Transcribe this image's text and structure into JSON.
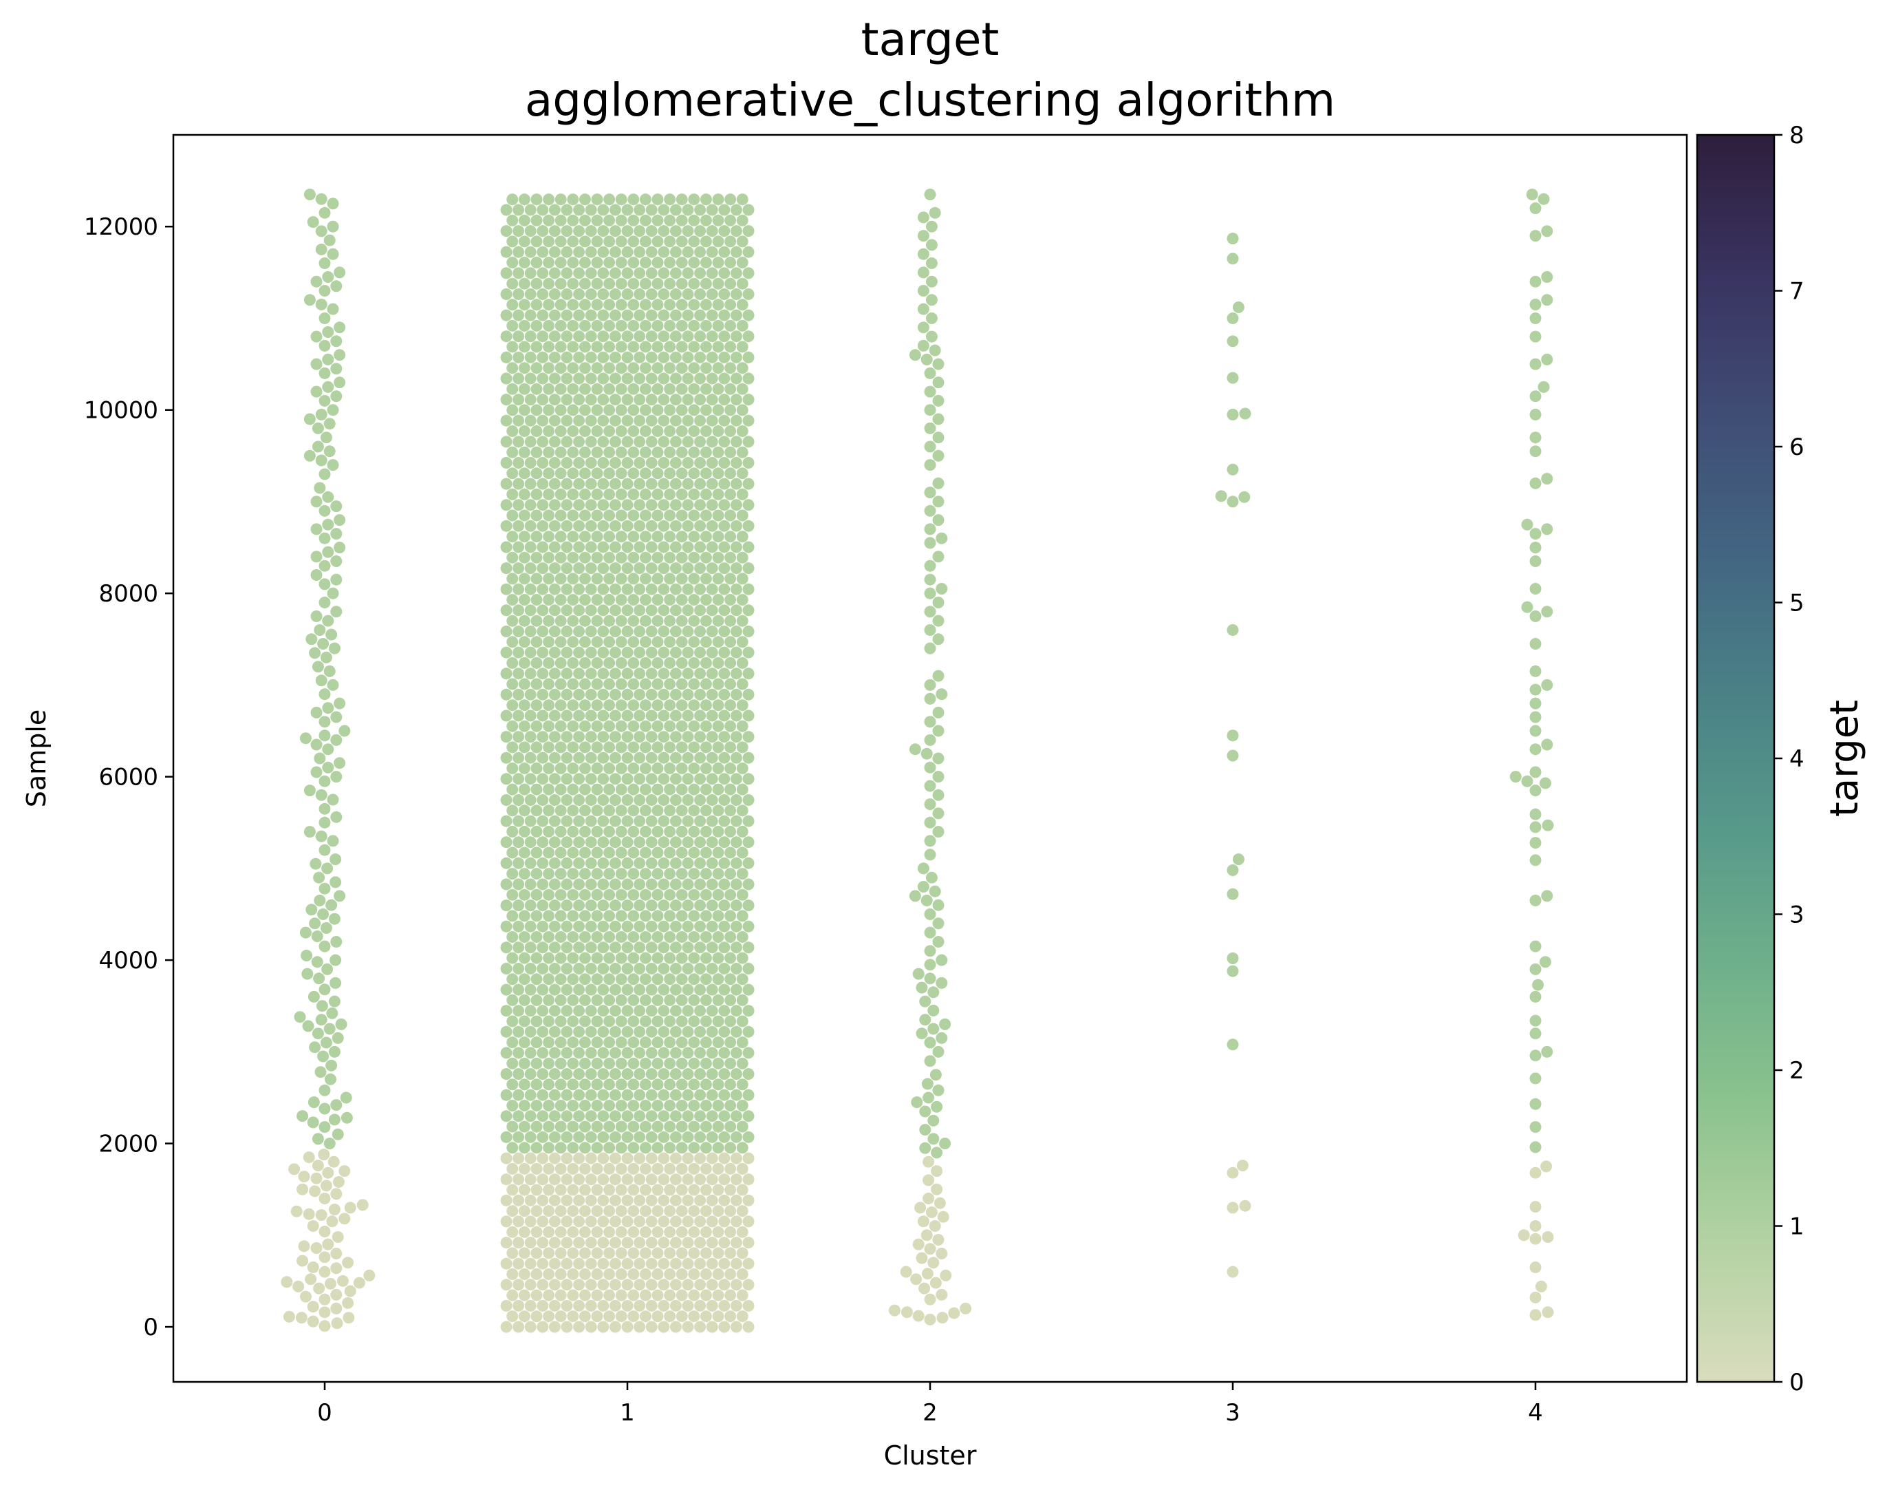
{
  "chart_data": {
    "type": "scatter",
    "subtype": "swarm",
    "title": "target",
    "subtitle": "agglomerative_clustering algorithm",
    "xlabel": "Cluster",
    "ylabel": "Sample",
    "x_categories": [
      "0",
      "1",
      "2",
      "3",
      "4"
    ],
    "xlim": [
      -0.5,
      4.5
    ],
    "ylim": [
      -600,
      13000
    ],
    "y_ticks": [
      0,
      2000,
      4000,
      6000,
      8000,
      10000,
      12000
    ],
    "y_tick_labels": [
      "0",
      "2000",
      "4000",
      "6000",
      "8000",
      "10000",
      "12000"
    ],
    "grid": false,
    "legend": "none",
    "colorbar": {
      "label": "target",
      "range": [
        0,
        8
      ],
      "ticks": [
        0,
        1,
        2,
        3,
        4,
        5,
        6,
        7,
        8
      ],
      "tick_labels": [
        "0",
        "1",
        "2",
        "3",
        "4",
        "5",
        "6",
        "7",
        "8"
      ],
      "colormap_stops": [
        "#d9dcbd",
        "#b4d2a3",
        "#8cc38e",
        "#6fb08b",
        "#57998a",
        "#4a8086",
        "#426582",
        "#3f4c74",
        "#393360",
        "#2e1e3c"
      ]
    },
    "point_colors": {
      "target_0": "#d7dbba",
      "target_1": "#b2d1a1"
    },
    "target_boundary_sample": 1900,
    "series": [
      {
        "cluster": "0",
        "samples": [
          10,
          40,
          60,
          100,
          100,
          110,
          160,
          200,
          220,
          260,
          300,
          330,
          350,
          390,
          420,
          440,
          470,
          480,
          490,
          500,
          520,
          560,
          600,
          640,
          650,
          700,
          720,
          760,
          800,
          860,
          880,
          900,
          980,
          1040,
          1100,
          1150,
          1180,
          1220,
          1230,
          1260,
          1280,
          1300,
          1330,
          1400,
          1450,
          1480,
          1500,
          1540,
          1580,
          1620,
          1640,
          1680,
          1700,
          1720,
          1760,
          1800,
          1850,
          1880,
          2000,
          2050,
          2100,
          2180,
          2230,
          2260,
          2280,
          2300,
          2380,
          2420,
          2450,
          2500,
          2580,
          2700,
          2780,
          2850,
          2950,
          3000,
          3050,
          3100,
          3150,
          3200,
          3250,
          3280,
          3300,
          3350,
          3380,
          3420,
          3500,
          3550,
          3600,
          3680,
          3750,
          3800,
          3850,
          3900,
          3980,
          4000,
          4050,
          4150,
          4200,
          4260,
          4300,
          4350,
          4400,
          4450,
          4500,
          4550,
          4600,
          4650,
          4700,
          4780,
          4850,
          4900,
          5000,
          5050,
          5100,
          5200,
          5300,
          5350,
          5400,
          5500,
          5560,
          5650,
          5750,
          5800,
          5850,
          5950,
          6000,
          6050,
          6100,
          6150,
          6200,
          6300,
          6350,
          6400,
          6420,
          6450,
          6500,
          6600,
          6650,
          6700,
          6750,
          6800,
          6900,
          7000,
          7050,
          7150,
          7200,
          7300,
          7350,
          7400,
          7450,
          7500,
          7550,
          7600,
          7700,
          7750,
          7800,
          7900,
          8000,
          8100,
          8150,
          8200,
          8300,
          8350,
          8400,
          8450,
          8500,
          8600,
          8650,
          8700,
          8750,
          8800,
          8900,
          8950,
          9000,
          9050,
          9150,
          9300,
          9400,
          9450,
          9500,
          9550,
          9600,
          9700,
          9800,
          9850,
          9900,
          9950,
          10000,
          10100,
          10150,
          10200,
          10250,
          10300,
          10400,
          10450,
          10500,
          10550,
          10600,
          10700,
          10750,
          10800,
          10850,
          10900,
          11000,
          11100,
          11150,
          11200,
          11300,
          11350,
          11400,
          11450,
          11500,
          11600,
          11700,
          11750,
          11850,
          11950,
          12000,
          12050,
          12150,
          12250,
          12300,
          12350
        ]
      },
      {
        "cluster": "1",
        "range": [
          0,
          12350
        ],
        "count": 1850
      },
      {
        "cluster": "2",
        "samples": [
          80,
          100,
          120,
          150,
          160,
          180,
          200,
          300,
          350,
          420,
          480,
          520,
          560,
          580,
          600,
          700,
          750,
          800,
          850,
          900,
          950,
          1000,
          1100,
          1150,
          1200,
          1250,
          1300,
          1350,
          1400,
          1500,
          1600,
          1700,
          1800,
          1900,
          1950,
          2000,
          2050,
          2150,
          2250,
          2350,
          2400,
          2450,
          2500,
          2580,
          2650,
          2750,
          2900,
          3000,
          3100,
          3150,
          3200,
          3250,
          3300,
          3350,
          3450,
          3550,
          3650,
          3700,
          3750,
          3800,
          3850,
          3950,
          4000,
          4100,
          4200,
          4300,
          4400,
          4500,
          4600,
          4650,
          4700,
          4750,
          4800,
          4900,
          5000,
          5150,
          5300,
          5400,
          5500,
          5600,
          5700,
          5800,
          5900,
          6000,
          6100,
          6200,
          6250,
          6300,
          6400,
          6500,
          6600,
          6700,
          6850,
          6900,
          7000,
          7100,
          7400,
          7500,
          7600,
          7700,
          7800,
          7900,
          8000,
          8050,
          8150,
          8300,
          8400,
          8550,
          8600,
          8700,
          8800,
          8900,
          9000,
          9100,
          9200,
          9400,
          9500,
          9600,
          9700,
          9800,
          9900,
          10000,
          10100,
          10200,
          10300,
          10400,
          10500,
          10550,
          10600,
          10650,
          10700,
          10800,
          10900,
          11000,
          11100,
          11200,
          11300,
          11400,
          11500,
          11600,
          11700,
          11800,
          11900,
          12000,
          12100,
          12150,
          12350
        ]
      },
      {
        "cluster": "3",
        "samples": [
          600,
          1300,
          1320,
          1680,
          1760,
          3080,
          3880,
          4020,
          4720,
          4980,
          5100,
          6230,
          6450,
          7600,
          9000,
          9050,
          9060,
          9350,
          9950,
          9960,
          10350,
          10750,
          11000,
          11120,
          11650,
          11870
        ]
      },
      {
        "cluster": "4",
        "samples": [
          130,
          160,
          320,
          440,
          650,
          960,
          980,
          1000,
          1100,
          1310,
          1680,
          1750,
          1960,
          2180,
          2430,
          2710,
          2960,
          3000,
          3200,
          3340,
          3600,
          3730,
          3900,
          3980,
          4150,
          4650,
          4700,
          5090,
          5280,
          5450,
          5470,
          5590,
          5850,
          5930,
          5950,
          6000,
          6050,
          6300,
          6350,
          6500,
          6650,
          6800,
          6950,
          7000,
          7150,
          7450,
          7750,
          7800,
          7850,
          8050,
          8350,
          8500,
          8650,
          8700,
          8750,
          9200,
          9250,
          9550,
          9700,
          9950,
          10150,
          10250,
          10500,
          10550,
          10800,
          11000,
          11150,
          11200,
          11400,
          11450,
          11900,
          11950,
          12200,
          12300,
          12350
        ]
      }
    ]
  }
}
